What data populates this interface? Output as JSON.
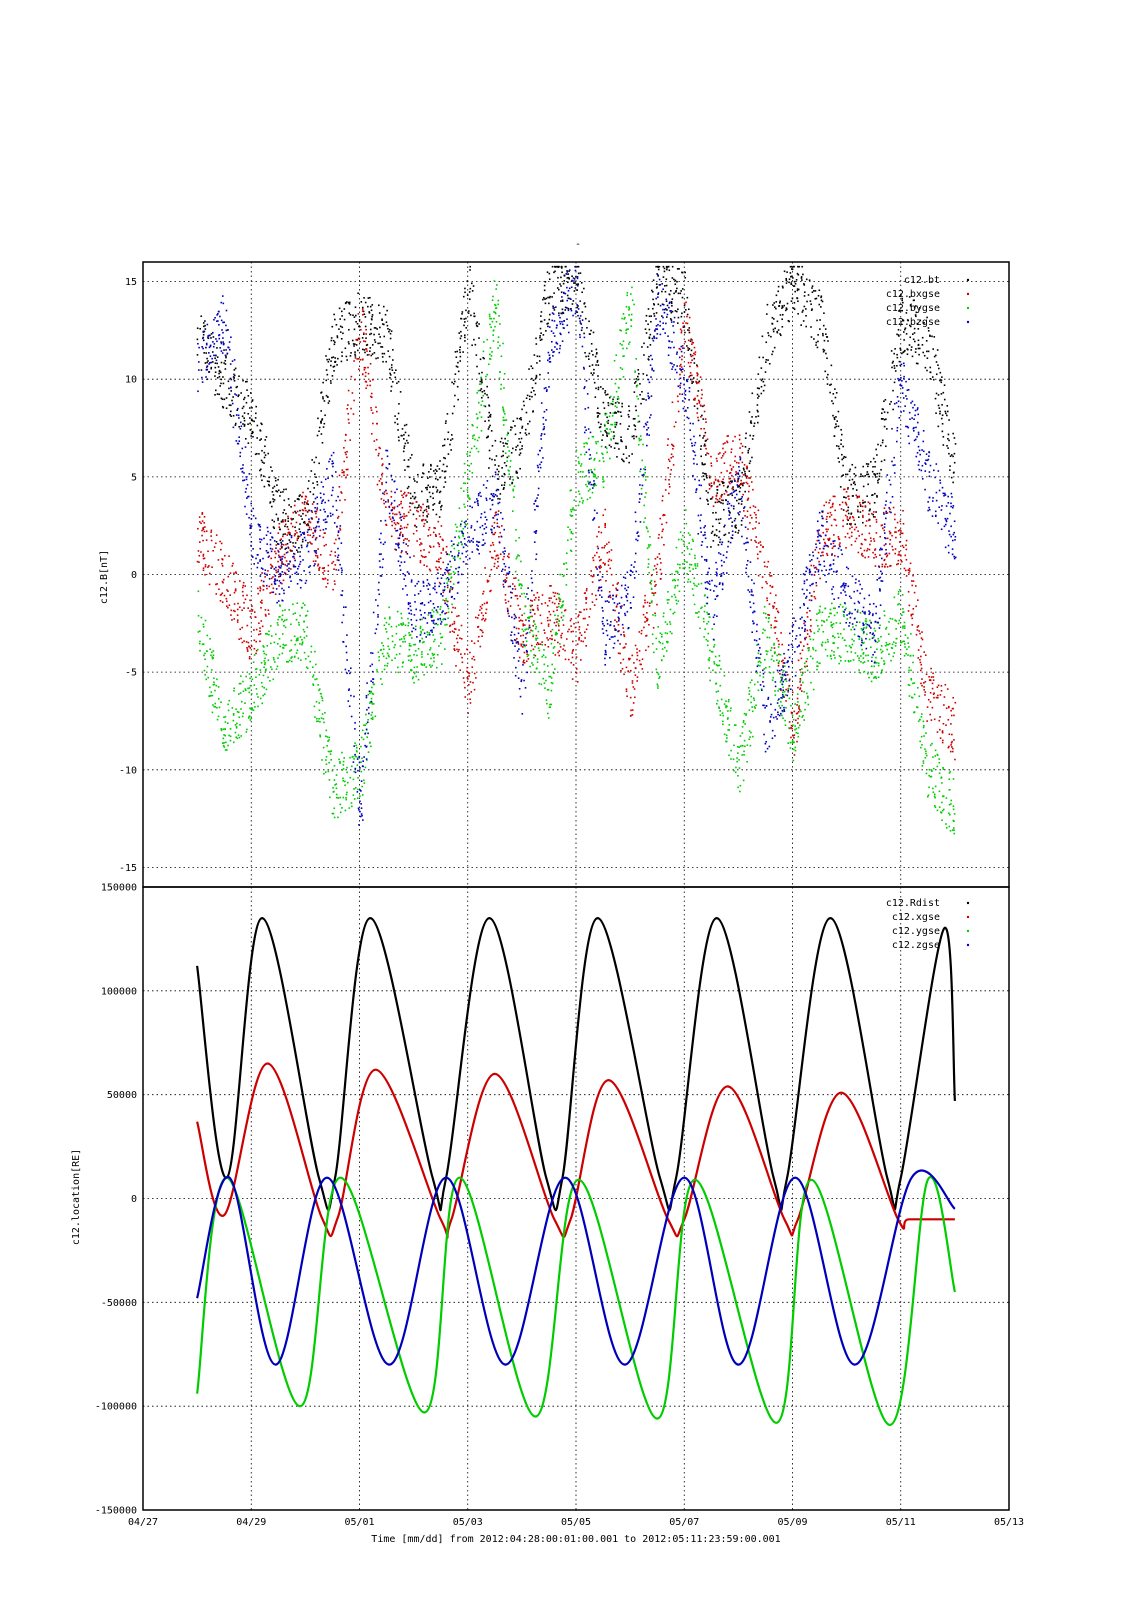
{
  "title": "-",
  "footer": {
    "time_label": "Time [mm/dd]  from 2012:04:28:00:01:00.001  to  2012:05:11:23:59:00.001"
  },
  "x_axis": {
    "ticks": [
      "04/27",
      "04/29",
      "05/01",
      "05/03",
      "05/05",
      "05/07",
      "05/09",
      "05/11",
      "05/13"
    ],
    "range_days": [
      0,
      16
    ],
    "data_range_days": [
      1,
      15
    ]
  },
  "colors": {
    "black": "#000000",
    "red": "#cc0000",
    "green": "#00cc00",
    "blue": "#0000bb",
    "grid": "#000000"
  },
  "chart_data": [
    {
      "type": "scatter",
      "panel": "top",
      "ylabel": "c12.B[nT]",
      "ylim": [
        -16,
        16
      ],
      "yticks": [
        15,
        10,
        5,
        0,
        -5,
        -10,
        -15
      ],
      "ytick_labels": [
        "15",
        "10",
        "5",
        "0",
        "-5",
        "-10",
        "-15"
      ],
      "grid": true,
      "legend_position": "top-right",
      "legend_note": "legend partially obscured by data points",
      "series": [
        {
          "name": "c12.bt",
          "color": "black",
          "x": [
            1.0,
            1.5,
            2.0,
            2.5,
            3.0,
            3.5,
            4.0,
            4.5,
            5.0,
            5.5,
            6.0,
            6.5,
            7.0,
            7.5,
            8.0,
            8.5,
            9.0,
            9.5,
            10.0,
            10.5,
            11.0,
            11.5,
            12.0,
            12.5,
            13.0,
            13.5,
            14.0,
            14.5,
            15.0
          ],
          "y": [
            12,
            10,
            8,
            3,
            2.5,
            12,
            13,
            12,
            4,
            4.5,
            15,
            5,
            7,
            15,
            15,
            8,
            7,
            15,
            14,
            3,
            3.5,
            12,
            15,
            13,
            4,
            4.5,
            13,
            12,
            5
          ]
        },
        {
          "name": "c12.bxgse",
          "color": "red",
          "x": [
            1.0,
            1.5,
            2.0,
            2.5,
            3.0,
            3.5,
            4.0,
            4.5,
            5.0,
            5.5,
            6.0,
            6.5,
            7.0,
            7.5,
            8.0,
            8.5,
            9.0,
            9.5,
            10.0,
            10.5,
            11.0,
            11.5,
            12.0,
            12.5,
            13.0,
            13.5,
            14.0,
            14.5,
            15.0
          ],
          "y": [
            2,
            0,
            -3,
            1,
            3,
            0,
            13,
            3,
            2.5,
            1,
            -6,
            2,
            -3,
            -2,
            -4,
            2,
            -6,
            0,
            13,
            5,
            6,
            0,
            -8,
            2,
            3,
            2,
            2,
            -6,
            -8
          ]
        },
        {
          "name": "c12.bygse",
          "color": "green",
          "x": [
            1.0,
            1.5,
            2.0,
            2.5,
            3.0,
            3.5,
            4.0,
            4.5,
            5.0,
            5.5,
            6.0,
            6.5,
            7.0,
            7.5,
            8.0,
            8.5,
            9.0,
            9.5,
            10.0,
            10.5,
            11.0,
            11.5,
            12.0,
            12.5,
            13.0,
            13.5,
            14.0,
            14.5,
            15.0
          ],
          "y": [
            -2,
            -8,
            -6,
            -3,
            -3,
            -11,
            -10,
            -3,
            -4,
            -3,
            5,
            14,
            -2,
            -6,
            5,
            6,
            14,
            -5,
            2,
            -4,
            -10,
            -3,
            -8,
            -3,
            -3,
            -4,
            -2,
            -10,
            -12
          ]
        },
        {
          "name": "c12.bzgse",
          "color": "blue",
          "x": [
            1.0,
            1.5,
            2.0,
            2.5,
            3.0,
            3.5,
            4.0,
            4.5,
            5.0,
            5.5,
            6.0,
            6.5,
            7.0,
            7.5,
            8.0,
            8.5,
            9.0,
            9.5,
            10.0,
            10.5,
            11.0,
            11.5,
            12.0,
            12.5,
            13.0,
            13.5,
            14.0,
            14.5,
            15.0
          ],
          "y": [
            11,
            13,
            2,
            0,
            1,
            5,
            -12,
            5,
            -2,
            -1,
            2,
            4,
            -6,
            12,
            15,
            -3,
            -1,
            14,
            10,
            -2,
            5,
            -8,
            -4,
            2,
            -1,
            -3,
            10,
            5,
            2
          ]
        }
      ]
    },
    {
      "type": "line",
      "panel": "bottom",
      "ylabel": "c12.location[RE]",
      "xlabel": "Time [mm/dd]  from 2012:04:28:00:01:00.001  to  2012:05:11:23:59:00.001",
      "ylim": [
        -150000,
        150000
      ],
      "yticks": [
        150000,
        100000,
        50000,
        0,
        -50000,
        -100000,
        -150000
      ],
      "ytick_labels": [
        "150000",
        "100000",
        "50000",
        "0",
        "-50000",
        "-100000",
        "-150000"
      ],
      "grid": true,
      "legend_position": "top-right",
      "series": [
        {
          "name": "c12.Rdist",
          "color": "black",
          "x": [
            1.0,
            1.55,
            2.2,
            3.25,
            3.55,
            4.2,
            5.35,
            5.6,
            6.4,
            7.45,
            7.75,
            8.4,
            9.55,
            9.85,
            10.6,
            11.65,
            11.9,
            12.7,
            13.75,
            14.0,
            14.8,
            15.0
          ],
          "y": [
            112000,
            10000,
            135000,
            10000,
            10000,
            135000,
            10000,
            10000,
            135000,
            10000,
            10000,
            135000,
            10000,
            10000,
            135000,
            10000,
            10000,
            135000,
            10000,
            10000,
            130000,
            47000
          ]
        },
        {
          "name": "c12.xgse",
          "color": "red",
          "x": [
            1.0,
            1.5,
            2.3,
            3.3,
            3.6,
            4.3,
            5.5,
            5.7,
            6.5,
            7.6,
            7.9,
            8.6,
            9.7,
            10.0,
            10.8,
            11.85,
            12.1,
            12.9,
            13.95,
            14.15,
            15.0
          ],
          "y": [
            37000,
            -8000,
            65000,
            -9000,
            -9000,
            62000,
            -10000,
            -10000,
            60000,
            -10000,
            -10000,
            57000,
            -10000,
            -10000,
            54000,
            -10000,
            -10000,
            51000,
            -10000,
            -10000,
            -10000
          ]
        },
        {
          "name": "c12.ygse",
          "color": "green",
          "x": [
            1.0,
            1.55,
            2.9,
            3.65,
            5.2,
            5.85,
            7.25,
            8.05,
            9.5,
            10.2,
            11.7,
            12.35,
            13.8,
            14.5,
            15.0
          ],
          "y": [
            -94000,
            10000,
            -100000,
            10000,
            -103000,
            10000,
            -105000,
            9000,
            -106000,
            9000,
            -108000,
            9000,
            -109000,
            9000,
            -45000
          ]
        },
        {
          "name": "c12.zgse",
          "color": "blue",
          "x": [
            1.0,
            1.6,
            2.45,
            3.4,
            4.55,
            5.6,
            6.7,
            7.8,
            8.9,
            10.0,
            11.0,
            12.05,
            13.15,
            14.2,
            15.0
          ],
          "y": [
            -48000,
            10000,
            -80000,
            10000,
            -80000,
            10000,
            -80000,
            10000,
            -80000,
            10000,
            -80000,
            10000,
            -80000,
            10000,
            -5000
          ]
        }
      ]
    }
  ]
}
